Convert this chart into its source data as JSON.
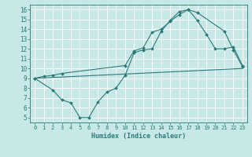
{
  "xlabel": "Humidex (Indice chaleur)",
  "bg_color": "#c8e8e8",
  "grid_color": "#ffffff",
  "line_color": "#2a7a7a",
  "xlim": [
    -0.5,
    23.5
  ],
  "ylim": [
    4.5,
    16.5
  ],
  "xticks": [
    0,
    1,
    2,
    3,
    4,
    5,
    6,
    7,
    8,
    9,
    10,
    11,
    12,
    13,
    14,
    15,
    16,
    17,
    18,
    19,
    20,
    21,
    22,
    23
  ],
  "yticks": [
    5,
    6,
    7,
    8,
    9,
    10,
    11,
    12,
    13,
    14,
    15,
    16
  ],
  "line1_x": [
    0,
    1,
    2,
    3,
    10,
    11,
    12,
    13,
    14,
    15,
    16,
    17,
    18,
    21,
    22,
    23
  ],
  "line1_y": [
    9.0,
    9.2,
    9.3,
    9.5,
    10.3,
    11.8,
    12.1,
    13.7,
    14.0,
    14.8,
    15.5,
    16.0,
    15.7,
    13.8,
    11.9,
    10.2
  ],
  "line2_x": [
    0,
    2,
    3,
    4,
    5,
    6,
    7,
    8,
    9,
    10,
    11,
    12,
    13,
    14,
    15,
    16,
    17,
    18,
    19,
    20,
    21,
    22,
    23
  ],
  "line2_y": [
    9.0,
    7.8,
    6.8,
    6.5,
    5.0,
    5.0,
    6.6,
    7.6,
    8.0,
    9.3,
    11.6,
    11.9,
    12.0,
    13.8,
    14.9,
    15.8,
    16.0,
    14.9,
    13.5,
    12.0,
    12.0,
    12.2,
    10.3
  ],
  "line3_x": [
    0,
    23
  ],
  "line3_y": [
    9.0,
    10.0
  ],
  "figsize": [
    3.2,
    2.0
  ],
  "dpi": 100
}
